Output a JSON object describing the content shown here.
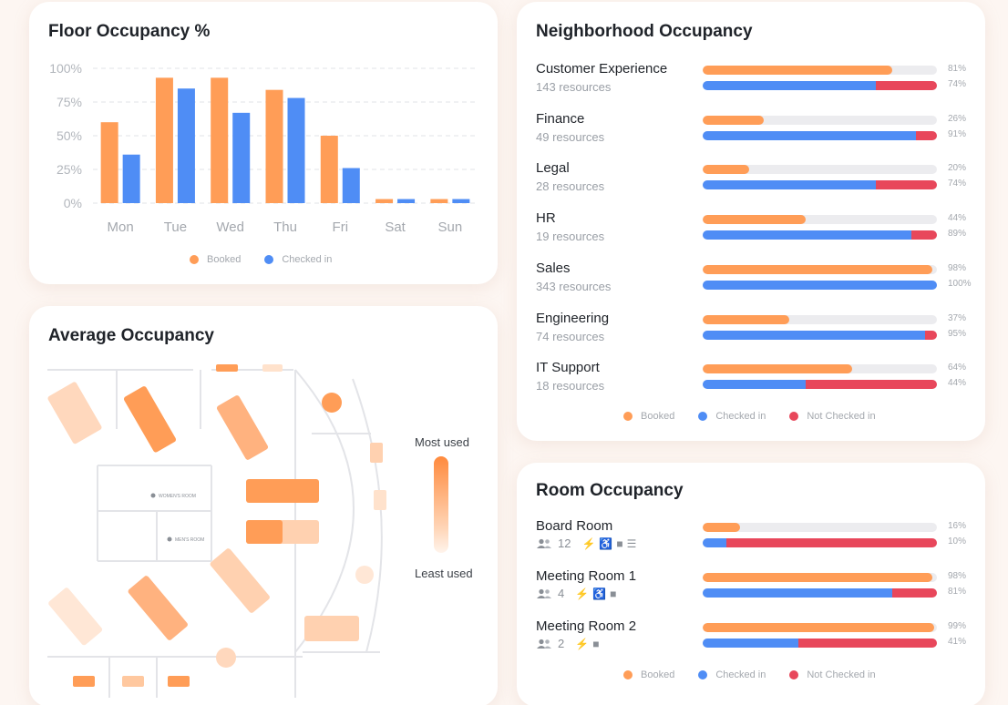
{
  "colors": {
    "booked": "#ff9d57",
    "checked_in": "#4f8df5",
    "not_checked_in": "#e8475b"
  },
  "floor_occupancy": {
    "title": "Floor Occupancy %",
    "legend": {
      "booked": "Booked",
      "checked_in": "Checked in"
    }
  },
  "chart_data": {
    "type": "bar",
    "title": "Floor Occupancy %",
    "categories": [
      "Mon",
      "Tue",
      "Wed",
      "Thu",
      "Fri",
      "Sat",
      "Sun"
    ],
    "series": [
      {
        "name": "Booked",
        "values": [
          60,
          93,
          93,
          84,
          50,
          3,
          3
        ]
      },
      {
        "name": "Checked in",
        "values": [
          36,
          85,
          67,
          78,
          26,
          3,
          3
        ]
      }
    ],
    "y_ticks": [
      "100%",
      "75%",
      "50%",
      "25%",
      "0%"
    ],
    "ylim": [
      0,
      100
    ],
    "grid": true,
    "legend_position": "bottom"
  },
  "average_occupancy": {
    "title": "Average Occupancy",
    "most_used": "Most used",
    "least_used": "Least used",
    "womens_room": "WOMEN'S ROOM",
    "mens_room": "MEN'S ROOM"
  },
  "neighborhood": {
    "title": "Neighborhood Occupancy",
    "rows": [
      {
        "name": "Customer Experience",
        "sub": "143 resources",
        "booked_label": "81%",
        "booked": 81,
        "checked_label": "74%",
        "checked": 74
      },
      {
        "name": "Finance",
        "sub": "49 resources",
        "booked_label": "26%",
        "booked": 26,
        "checked_label": "91%",
        "checked": 91
      },
      {
        "name": "Legal",
        "sub": "28 resources",
        "booked_label": "20%",
        "booked": 20,
        "checked_label": "74%",
        "checked": 74
      },
      {
        "name": "HR",
        "sub": "19 resources",
        "booked_label": "44%",
        "booked": 44,
        "checked_label": "89%",
        "checked": 89
      },
      {
        "name": "Sales",
        "sub": "343 resources",
        "booked_label": "98%",
        "booked": 98,
        "checked_label": "100%",
        "checked": 100
      },
      {
        "name": "Engineering",
        "sub": "74 resources",
        "booked_label": "37%",
        "booked": 37,
        "checked_label": "95%",
        "checked": 95
      },
      {
        "name": "IT Support",
        "sub": "18 resources",
        "booked_label": "64%",
        "booked": 64,
        "checked_label": "44%",
        "checked": 44
      }
    ],
    "legend": {
      "booked": "Booked",
      "checked_in": "Checked in",
      "not_checked_in": "Not Checked in"
    }
  },
  "rooms": {
    "title": "Room Occupancy",
    "rows": [
      {
        "name": "Board Room",
        "capacity": "12",
        "amenities": [
          "power-icon",
          "accessible-icon",
          "video-icon",
          "catering-icon"
        ],
        "booked_label": "16%",
        "booked": 16,
        "checked_label": "10%",
        "checked": 10
      },
      {
        "name": "Meeting Room 1",
        "capacity": "4",
        "amenities": [
          "power-icon",
          "accessible-icon",
          "video-icon"
        ],
        "booked_label": "98%",
        "booked": 98,
        "checked_label": "81%",
        "checked": 81
      },
      {
        "name": "Meeting Room 2",
        "capacity": "2",
        "amenities": [
          "power-icon",
          "video-icon"
        ],
        "booked_label": "99%",
        "booked": 99,
        "checked_label": "41%",
        "checked": 41
      }
    ],
    "legend": {
      "booked": "Booked",
      "checked_in": "Checked in",
      "not_checked_in": "Not Checked in"
    }
  }
}
